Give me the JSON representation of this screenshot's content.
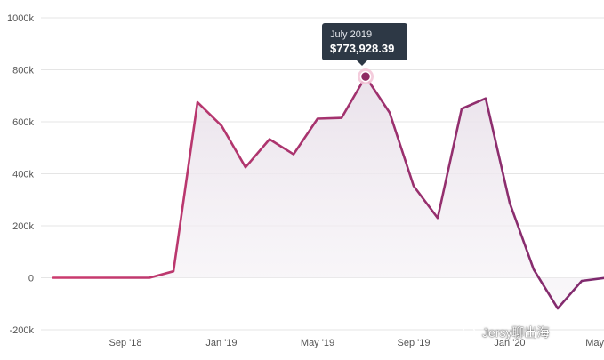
{
  "chart_data": {
    "type": "area",
    "x": [
      "2018-06",
      "2018-07",
      "2018-08",
      "2018-09",
      "2018-10",
      "2018-11",
      "2018-12",
      "2019-01",
      "2019-02",
      "2019-03",
      "2019-04",
      "2019-05",
      "2019-06",
      "2019-07",
      "2019-08",
      "2019-09",
      "2019-10",
      "2019-11",
      "2019-12",
      "2020-01",
      "2020-02",
      "2020-03",
      "2020-04",
      "2020-05"
    ],
    "values": [
      0,
      0,
      0,
      0,
      0,
      25000,
      675000,
      585000,
      425000,
      533000,
      475000,
      612000,
      615000,
      773928.39,
      635000,
      353000,
      230000,
      650000,
      690000,
      288000,
      32000,
      -118000,
      -12000,
      0
    ],
    "yticks": [
      -200000,
      0,
      200000,
      400000,
      600000,
      800000,
      1000000
    ],
    "ytick_labels": [
      "-200k",
      "0",
      "200k",
      "400k",
      "600k",
      "800k",
      "1000k"
    ],
    "ylim": [
      -200000,
      1000000
    ],
    "xticks": [
      "2018-09",
      "2019-01",
      "2019-05",
      "2019-09",
      "2020-01",
      "2020-05"
    ],
    "xtick_labels": [
      "Sep '18",
      "Jan '19",
      "May '19",
      "Sep '19",
      "Jan '20",
      "May"
    ],
    "grid": true,
    "highlight_index": 13,
    "colors": {
      "line_start": "#cc3b6e",
      "line_end": "#7d2a6e",
      "fill": "#efe9f0",
      "grid": "#e5e5e5"
    }
  },
  "tooltip": {
    "label": "July 2019",
    "value": "$773,928.39"
  },
  "watermark": {
    "text": "Jersy聊出海"
  }
}
